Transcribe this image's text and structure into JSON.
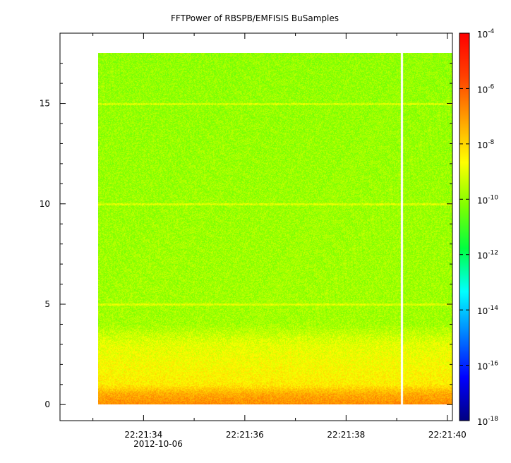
{
  "chart_data": {
    "type": "heatmap",
    "title": "FFTPower of RBSPB/EMFISIS  BuSamples",
    "xlabel": "",
    "ylabel": "",
    "x_range": [
      "22:21:32.35",
      "22:21:40.10"
    ],
    "x_ticks": [
      {
        "value": "22:21:34",
        "label": "22:21:34"
      },
      {
        "value": "22:21:36",
        "label": "22:21:36"
      },
      {
        "value": "22:21:38",
        "label": "22:21:38"
      },
      {
        "value": "22:21:40",
        "label": "22:21:40"
      }
    ],
    "x_minor_ticks": [
      "22:21:33",
      "22:21:35",
      "22:21:37",
      "22:21:39"
    ],
    "date_label": "2012-10-06",
    "ylim": [
      -0.8,
      18.5
    ],
    "y_ticks": [
      0,
      5,
      10,
      15
    ],
    "data_x_start": "22:21:33.1",
    "data_x_end": "22:21:40.10",
    "data_y_range": [
      0,
      17.5
    ],
    "data_gap_x": "22:21:39.1",
    "color_scale": {
      "type": "log",
      "range": [
        1e-18,
        0.0001
      ],
      "colors": [
        "#000080",
        "#0000ff",
        "#0080ff",
        "#00ffff",
        "#00ff40",
        "#80ff00",
        "#ffff00",
        "#ffa000",
        "#ff4000",
        "#ff0000"
      ],
      "ticks": [
        {
          "base": "10",
          "exp": "-4"
        },
        {
          "base": "10",
          "exp": "-6"
        },
        {
          "base": "10",
          "exp": "-8"
        },
        {
          "base": "10",
          "exp": "-10"
        },
        {
          "base": "10",
          "exp": "-12"
        },
        {
          "base": "10",
          "exp": "-14"
        },
        {
          "base": "10",
          "exp": "-16"
        },
        {
          "base": "10",
          "exp": "-18"
        }
      ]
    },
    "profile": [
      {
        "y": 0.0,
        "log_power": -6.8
      },
      {
        "y": 0.5,
        "log_power": -7.3
      },
      {
        "y": 1.0,
        "log_power": -8.4
      },
      {
        "y": 2.0,
        "log_power": -8.7
      },
      {
        "y": 3.0,
        "log_power": -9.0
      },
      {
        "y": 3.5,
        "log_power": -9.4
      },
      {
        "y": 4.0,
        "log_power": -9.8
      },
      {
        "y": 17.5,
        "log_power": -10.0
      }
    ],
    "line_features_y": [
      5,
      10,
      15
    ]
  }
}
